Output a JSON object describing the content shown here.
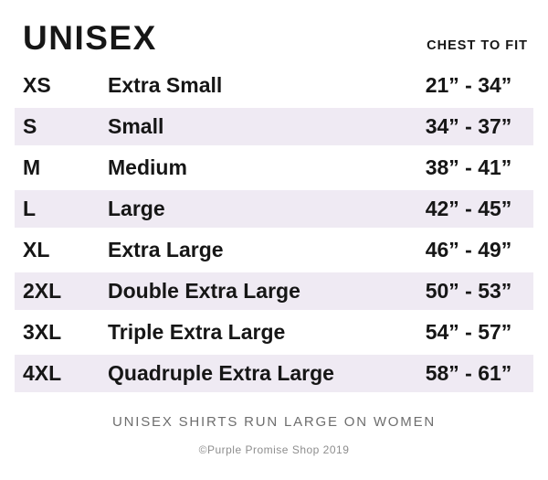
{
  "header": {
    "title": "UNISEX",
    "column_label": "CHEST TO FIT"
  },
  "chart_data": {
    "type": "table",
    "title": "UNISEX",
    "columns": [
      "size_code",
      "size_name",
      "chest_to_fit"
    ],
    "rows": [
      {
        "code": "XS",
        "name": "Extra Small",
        "range": "21” - 34”"
      },
      {
        "code": "S",
        "name": "Small",
        "range": "34” - 37”"
      },
      {
        "code": "M",
        "name": "Medium",
        "range": "38” - 41”"
      },
      {
        "code": "L",
        "name": "Large",
        "range": "42” - 45”"
      },
      {
        "code": "XL",
        "name": "Extra Large",
        "range": "46” - 49”"
      },
      {
        "code": "2XL",
        "name": "Double Extra Large",
        "range": "50” - 53”"
      },
      {
        "code": "3XL",
        "name": "Triple Extra Large",
        "range": "54” - 57”"
      },
      {
        "code": "4XL",
        "name": "Quadruple Extra Large",
        "range": "58” - 61”"
      }
    ],
    "layout": {
      "striped_rows": "even rows shaded",
      "legend_position": "none",
      "grid": false
    }
  },
  "footer": {
    "note": "UNISEX SHIRTS RUN LARGE ON WOMEN",
    "copyright": "©Purple Promise Shop 2019"
  },
  "colors": {
    "row_shade": "#EFEAF3",
    "text": "#161616",
    "note_gray": "#6E6E6E",
    "copyright_gray": "#8E8E8E",
    "background": "#FFFFFF"
  }
}
